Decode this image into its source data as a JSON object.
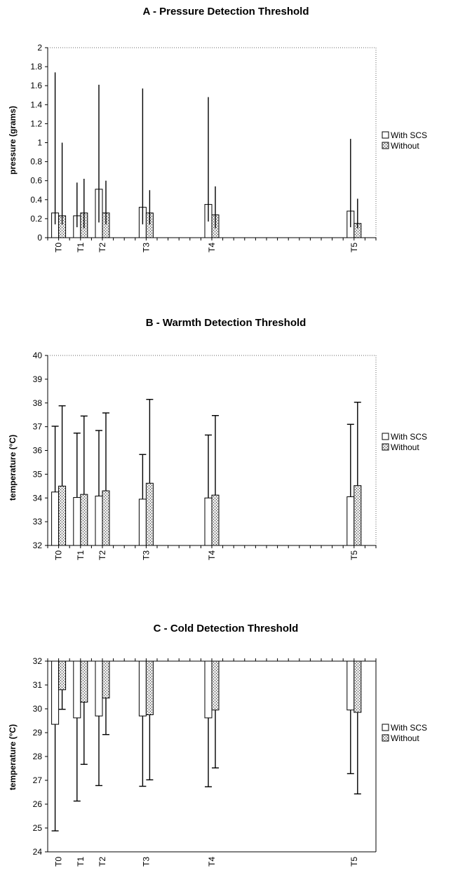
{
  "chart_data": [
    {
      "type": "bar",
      "title": "A - Pressure Detection Threshold",
      "xlabel": "",
      "ylabel": "pressure (grams)",
      "ylim": [
        0,
        2
      ],
      "yticks": [
        "0",
        "0.2",
        "0.4",
        "0.6",
        "0.8",
        "1",
        "1.2",
        "1.4",
        "1.6",
        "1.8",
        "2"
      ],
      "x_axis_days": [
        0,
        1,
        2,
        3,
        4,
        5,
        6,
        7,
        8,
        9,
        10,
        11,
        12,
        13,
        14,
        15,
        16,
        17,
        18,
        19,
        20,
        21,
        22,
        23,
        24,
        25,
        26,
        27,
        28,
        29,
        30
      ],
      "categories": [
        "T0",
        "T1",
        "T2",
        "T3",
        "T4",
        "T5"
      ],
      "series": [
        {
          "name": "With SCS",
          "values": [
            0.26,
            0.23,
            0.51,
            0.32,
            0.35,
            0.28
          ],
          "err_high": [
            1.74,
            0.58,
            1.61,
            1.57,
            1.48,
            1.04
          ],
          "err_low": [
            0.14,
            0.11,
            0.16,
            0.14,
            0.17,
            0.11
          ]
        },
        {
          "name": "Without",
          "values": [
            0.23,
            0.26,
            0.26,
            0.26,
            0.24,
            0.15
          ],
          "err_high": [
            1.0,
            0.62,
            0.6,
            0.5,
            0.54,
            0.41
          ],
          "err_low": [
            0.14,
            0.1,
            0.14,
            0.14,
            0.1,
            0.1
          ]
        }
      ],
      "legend": "right"
    },
    {
      "type": "bar",
      "title": "B - Warmth Detection Threshold",
      "xlabel": "",
      "ylabel": "temperature (°C)",
      "ylim": [
        32,
        40
      ],
      "yticks": [
        "32",
        "33",
        "34",
        "35",
        "36",
        "37",
        "38",
        "39",
        "40"
      ],
      "categories": [
        "T0",
        "T1",
        "T2",
        "T3",
        "T4",
        "T5"
      ],
      "series": [
        {
          "name": "With SCS",
          "values": [
            34.25,
            34.02,
            34.08,
            33.95,
            34.0,
            34.05
          ],
          "err_high": [
            37.02,
            36.73,
            36.84,
            35.83,
            36.65,
            37.1
          ]
        },
        {
          "name": "Without",
          "values": [
            34.5,
            34.15,
            34.3,
            34.62,
            34.12,
            34.52
          ],
          "err_high": [
            37.88,
            37.45,
            37.58,
            38.15,
            37.47,
            38.03
          ]
        }
      ],
      "legend": "right"
    },
    {
      "type": "bar",
      "title": "C - Cold Detection Threshold",
      "xlabel": "",
      "ylabel": "temperature (°C)",
      "ylim": [
        24,
        32
      ],
      "yticks": [
        "24",
        "25",
        "26",
        "27",
        "28",
        "29",
        "30",
        "31",
        "32"
      ],
      "categories": [
        "T0",
        "T1",
        "T2",
        "T3",
        "T4",
        "T5"
      ],
      "series": [
        {
          "name": "With SCS",
          "values": [
            29.35,
            29.62,
            29.7,
            29.7,
            29.62,
            29.95
          ],
          "err_low": [
            24.88,
            26.13,
            26.78,
            26.75,
            26.73,
            27.28
          ]
        },
        {
          "name": "Without",
          "values": [
            30.8,
            30.28,
            30.45,
            29.75,
            29.95,
            29.85
          ],
          "err_low": [
            29.98,
            27.67,
            28.92,
            27.02,
            27.52,
            26.43
          ]
        }
      ],
      "legend": "right"
    }
  ]
}
